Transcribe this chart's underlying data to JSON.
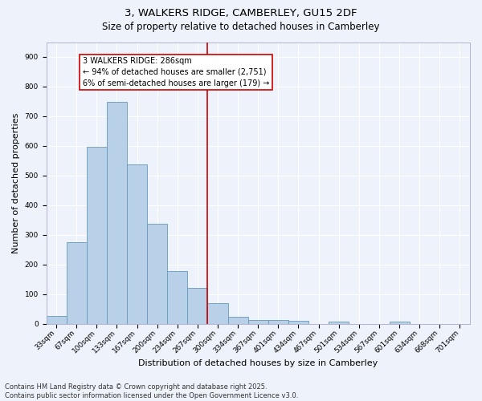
{
  "title": "3, WALKERS RIDGE, CAMBERLEY, GU15 2DF",
  "subtitle": "Size of property relative to detached houses in Camberley",
  "xlabel": "Distribution of detached houses by size in Camberley",
  "ylabel": "Number of detached properties",
  "bar_labels": [
    "33sqm",
    "67sqm",
    "100sqm",
    "133sqm",
    "167sqm",
    "200sqm",
    "234sqm",
    "267sqm",
    "300sqm",
    "334sqm",
    "367sqm",
    "401sqm",
    "434sqm",
    "467sqm",
    "501sqm",
    "534sqm",
    "567sqm",
    "601sqm",
    "634sqm",
    "668sqm",
    "701sqm"
  ],
  "bar_values": [
    27,
    275,
    598,
    748,
    538,
    338,
    178,
    120,
    70,
    23,
    12,
    12,
    10,
    0,
    7,
    0,
    0,
    7,
    0,
    0,
    0
  ],
  "bar_color": "#b8d0e8",
  "bar_edge_color": "#6699bb",
  "background_color": "#eef2fa",
  "grid_color": "#ffffff",
  "vline_color": "#cc0000",
  "annotation_text": "3 WALKERS RIDGE: 286sqm\n← 94% of detached houses are smaller (2,751)\n6% of semi-detached houses are larger (179) →",
  "annotation_box_color": "#cc0000",
  "ylim": [
    0,
    950
  ],
  "yticks": [
    0,
    100,
    200,
    300,
    400,
    500,
    600,
    700,
    800,
    900
  ],
  "footer_text": "Contains HM Land Registry data © Crown copyright and database right 2025.\nContains public sector information licensed under the Open Government Licence v3.0.",
  "title_fontsize": 9.5,
  "subtitle_fontsize": 8.5,
  "axis_label_fontsize": 8,
  "tick_fontsize": 6.5,
  "annotation_fontsize": 7,
  "footer_fontsize": 6
}
